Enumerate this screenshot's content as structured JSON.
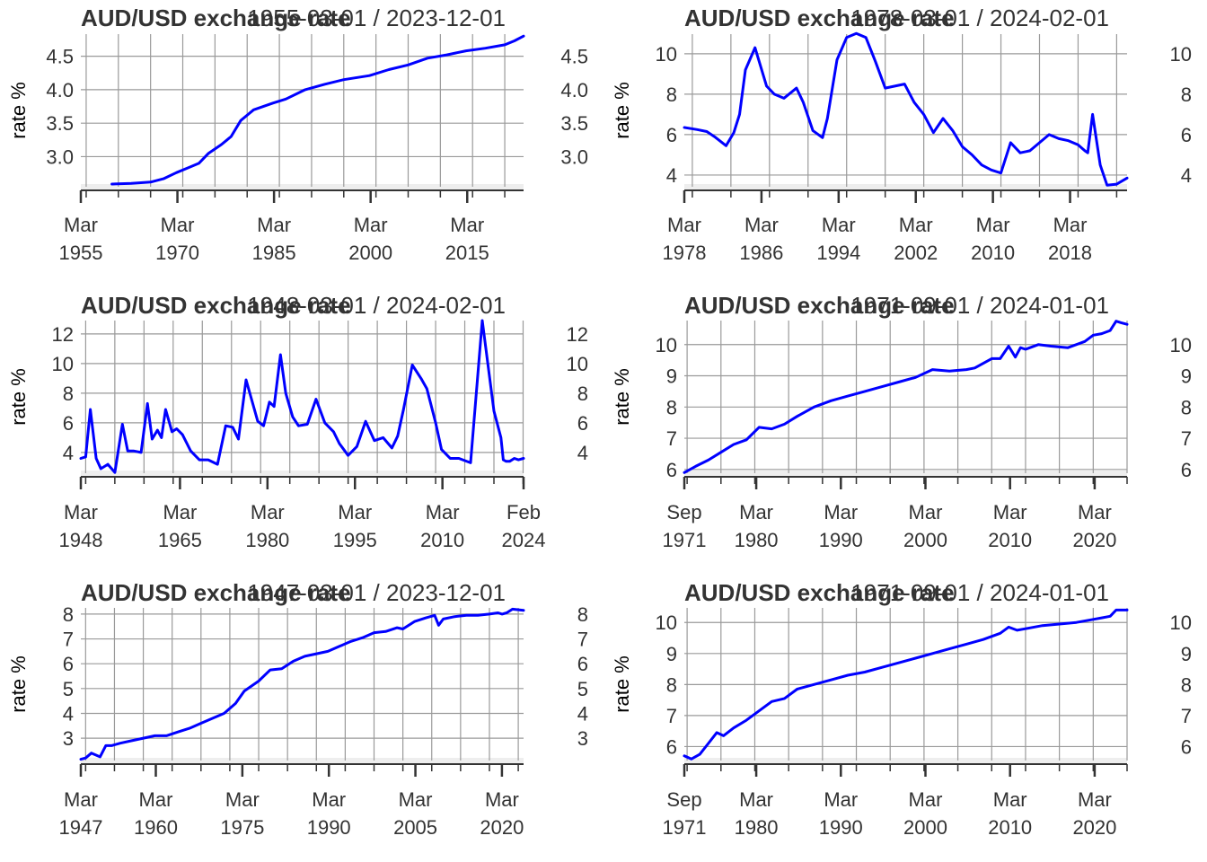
{
  "colors": {
    "line": "#0000ff",
    "grid": "#9a9a9a",
    "axis": "#333333",
    "shade": "#eeeeee"
  },
  "chart_data": [
    {
      "type": "line",
      "title": "AUD/USD exchange rate",
      "date_range": "1955-03-01 / 2023-12-01",
      "ylabel": "rate %",
      "y_ticks": [
        "3.0",
        "3.5",
        "4.0",
        "4.5"
      ],
      "ylim": [
        2.55,
        4.83
      ],
      "x_ticks": [
        {
          "t": 1955.17,
          "label": [
            "Mar",
            "1955"
          ]
        },
        {
          "t": 1970.17,
          "label": [
            "Mar",
            "1970"
          ]
        },
        {
          "t": 1985.17,
          "label": [
            "Mar",
            "1985"
          ]
        },
        {
          "t": 2000.17,
          "label": [
            "Mar",
            "2000"
          ]
        },
        {
          "t": 2015.17,
          "label": [
            "Mar",
            "2015"
          ]
        }
      ],
      "xlim": [
        1955.17,
        2023.92
      ],
      "grid": true,
      "series": [
        {
          "x": [
            1960.0,
            1963.0,
            1966.0,
            1968.0,
            1970.0,
            1972.0,
            1973.5,
            1975.0,
            1977.0,
            1978.5,
            1980.0,
            1982.0,
            1985.0,
            1987.0,
            1990.0,
            1993.0,
            1996.0,
            2000.0,
            2003.0,
            2006.0,
            2009.0,
            2012.0,
            2015.0,
            2018.0,
            2021.0,
            2022.5,
            2023.92
          ],
          "y": [
            2.59,
            2.6,
            2.62,
            2.67,
            2.76,
            2.84,
            2.9,
            3.05,
            3.18,
            3.3,
            3.54,
            3.7,
            3.8,
            3.86,
            4.0,
            4.08,
            4.15,
            4.21,
            4.3,
            4.37,
            4.47,
            4.52,
            4.58,
            4.62,
            4.67,
            4.73,
            4.8
          ]
        }
      ]
    },
    {
      "type": "line",
      "title": "AUD/USD exchange rate",
      "date_range": "1978-03-01 / 2024-02-01",
      "ylabel": "rate %",
      "y_ticks": [
        "4",
        "6",
        "8",
        "10"
      ],
      "ylim": [
        3.42,
        10.97
      ],
      "x_ticks": [
        {
          "t": 1978.17,
          "label": [
            "Mar",
            "1978"
          ]
        },
        {
          "t": 1986.17,
          "label": [
            "Mar",
            "1986"
          ]
        },
        {
          "t": 1994.17,
          "label": [
            "Mar",
            "1994"
          ]
        },
        {
          "t": 2002.17,
          "label": [
            "Mar",
            "2002"
          ]
        },
        {
          "t": 2010.17,
          "label": [
            "Mar",
            "2010"
          ]
        },
        {
          "t": 2018.17,
          "label": [
            "Mar",
            "2018"
          ]
        }
      ],
      "xlim": [
        1978.17,
        2024.08
      ],
      "grid": true,
      "series": [
        {
          "x": [
            1978.17,
            1979.5,
            1980.5,
            1981.3,
            1982.5,
            1983.3,
            1983.9,
            1984.5,
            1985.5,
            1986.7,
            1987.5,
            1988.5,
            1989.8,
            1990.5,
            1991.5,
            1992.5,
            1993.0,
            1994.0,
            1995.0,
            1996.0,
            1997.0,
            1998.0,
            1999.0,
            2000.0,
            2001.0,
            2002.0,
            2003.0,
            2004.0,
            2005.0,
            2006.0,
            2007.0,
            2008.0,
            2009.0,
            2010.0,
            2011.0,
            2012.0,
            2013.0,
            2014.0,
            2015.0,
            2016.0,
            2017.0,
            2018.0,
            2019.0,
            2019.7,
            2020.0,
            2020.5,
            2021.3,
            2022.0,
            2023.0,
            2024.08
          ],
          "y": [
            6.35,
            6.25,
            6.15,
            5.9,
            5.45,
            6.1,
            7.0,
            9.2,
            10.3,
            8.4,
            8.0,
            7.8,
            8.3,
            7.6,
            6.2,
            5.85,
            6.8,
            9.7,
            10.8,
            11.0,
            10.8,
            9.6,
            8.3,
            8.4,
            8.5,
            7.6,
            7.0,
            6.1,
            6.8,
            6.2,
            5.4,
            5.0,
            4.5,
            4.25,
            4.1,
            5.6,
            5.1,
            5.2,
            5.6,
            6.0,
            5.8,
            5.7,
            5.5,
            5.2,
            5.1,
            7.0,
            4.5,
            3.5,
            3.55,
            3.85
          ]
        }
      ]
    },
    {
      "type": "line",
      "title": "AUD/USD exchange rate",
      "date_range": "1948-03-01 / 2024-02-01",
      "ylabel": "rate %",
      "y_ticks": [
        "4",
        "6",
        "8",
        "10",
        "12"
      ],
      "ylim": [
        2.6,
        12.9
      ],
      "x_ticks": [
        {
          "t": 1948.17,
          "label": [
            "Mar",
            "1948"
          ]
        },
        {
          "t": 1965.17,
          "label": [
            "Mar",
            "1965"
          ]
        },
        {
          "t": 1980.17,
          "label": [
            "Mar",
            "1980"
          ]
        },
        {
          "t": 1995.17,
          "label": [
            "Mar",
            "1995"
          ]
        },
        {
          "t": 2010.17,
          "label": [
            "Mar",
            "2010"
          ]
        },
        {
          "t": 2024.08,
          "label": [
            "Feb",
            "2024"
          ]
        }
      ],
      "xlim": [
        1948.17,
        2024.08
      ],
      "grid": true,
      "series": [
        {
          "x": [
            1948.17,
            1949.0,
            1949.8,
            1950.8,
            1951.6,
            1952.8,
            1954.0,
            1955.3,
            1956.2,
            1957.2,
            1958.5,
            1959.6,
            1960.4,
            1961.3,
            1962.0,
            1962.7,
            1963.8,
            1964.6,
            1965.6,
            1967.0,
            1968.5,
            1970.0,
            1971.6,
            1973.0,
            1974.2,
            1975.2,
            1976.5,
            1977.5,
            1978.5,
            1979.5,
            1980.5,
            1981.3,
            1982.4,
            1983.3,
            1984.5,
            1985.5,
            1987.0,
            1988.5,
            1990.0,
            1991.5,
            1992.5,
            1994.0,
            1995.5,
            1997.0,
            1998.5,
            2000.0,
            2001.5,
            2002.5,
            2003.5,
            2005.0,
            2006.5,
            2007.5,
            2009.0,
            2010.0,
            2011.5,
            2013.0,
            2015.0,
            2017.0,
            2019.0,
            2020.2,
            2020.6,
            2021.1,
            2021.7,
            2022.5,
            2023.2,
            2024.08
          ],
          "y": [
            3.6,
            3.7,
            6.9,
            3.6,
            2.9,
            3.2,
            2.65,
            5.9,
            4.1,
            4.1,
            4.0,
            7.3,
            4.9,
            5.5,
            5.0,
            6.9,
            5.4,
            5.6,
            5.2,
            4.1,
            3.5,
            3.5,
            3.2,
            5.8,
            5.7,
            4.9,
            8.9,
            7.5,
            6.1,
            5.8,
            7.4,
            7.1,
            10.6,
            8.0,
            6.4,
            5.8,
            5.9,
            7.6,
            6.0,
            5.4,
            4.6,
            3.8,
            4.4,
            6.1,
            4.8,
            5.0,
            4.3,
            5.1,
            6.9,
            9.9,
            9.0,
            8.3,
            6.0,
            4.2,
            3.6,
            3.6,
            3.3,
            12.9,
            6.8,
            5.0,
            3.5,
            3.4,
            3.4,
            3.6,
            3.5,
            3.6
          ]
        }
      ]
    },
    {
      "type": "line",
      "title": "AUD/USD exchange rate",
      "date_range": "1971-09-01 / 2024-01-01",
      "ylabel": "rate %",
      "y_ticks": [
        "6",
        "7",
        "8",
        "9",
        "10"
      ],
      "ylim": [
        5.88,
        10.77
      ],
      "x_ticks": [
        {
          "t": 1971.67,
          "label": [
            "Sep",
            "1971"
          ]
        },
        {
          "t": 1980.17,
          "label": [
            "Mar",
            "1980"
          ]
        },
        {
          "t": 1990.17,
          "label": [
            "Mar",
            "1990"
          ]
        },
        {
          "t": 2000.17,
          "label": [
            "Mar",
            "2000"
          ]
        },
        {
          "t": 2010.17,
          "label": [
            "Mar",
            "2010"
          ]
        },
        {
          "t": 2020.17,
          "label": [
            "Mar",
            "2020"
          ]
        }
      ],
      "xlim": [
        1971.67,
        2024.0
      ],
      "grid": true,
      "series": [
        {
          "x": [
            1971.67,
            1973.0,
            1974.5,
            1976.0,
            1977.5,
            1979.0,
            1980.5,
            1982.0,
            1983.5,
            1985.0,
            1987.0,
            1989.0,
            1991.0,
            1993.0,
            1995.0,
            1997.0,
            1999.0,
            2001.0,
            2003.0,
            2005.0,
            2006.0,
            2008.0,
            2009.0,
            2010.0,
            2010.8,
            2011.4,
            2012.0,
            2013.5,
            2015.0,
            2017.0,
            2019.0,
            2020.0,
            2021.0,
            2022.0,
            2022.7,
            2023.3,
            2024.0
          ],
          "y": [
            5.9,
            6.1,
            6.3,
            6.55,
            6.8,
            6.95,
            7.35,
            7.3,
            7.45,
            7.7,
            8.0,
            8.2,
            8.35,
            8.5,
            8.65,
            8.8,
            8.95,
            9.2,
            9.15,
            9.2,
            9.25,
            9.55,
            9.55,
            9.95,
            9.6,
            9.9,
            9.85,
            10.0,
            9.95,
            9.9,
            10.1,
            10.3,
            10.35,
            10.45,
            10.75,
            10.7,
            10.65
          ]
        }
      ]
    },
    {
      "type": "line",
      "title": "AUD/USD exchange rate",
      "date_range": "1947-03-01 / 2023-12-01",
      "ylabel": "rate %",
      "y_ticks": [
        "3",
        "4",
        "5",
        "6",
        "7",
        "8"
      ],
      "ylim": [
        2.1,
        8.25
      ],
      "x_ticks": [
        {
          "t": 1947.17,
          "label": [
            "Mar",
            "1947"
          ]
        },
        {
          "t": 1960.17,
          "label": [
            "Mar",
            "1960"
          ]
        },
        {
          "t": 1975.17,
          "label": [
            "Mar",
            "1975"
          ]
        },
        {
          "t": 1990.17,
          "label": [
            "Mar",
            "1990"
          ]
        },
        {
          "t": 2005.17,
          "label": [
            "Mar",
            "2005"
          ]
        },
        {
          "t": 2020.17,
          "label": [
            "Mar",
            "2020"
          ]
        }
      ],
      "xlim": [
        1947.17,
        2023.92
      ],
      "grid": true,
      "series": [
        {
          "x": [
            1947.17,
            1948.0,
            1949.0,
            1950.5,
            1951.5,
            1952.5,
            1954.0,
            1956.0,
            1958.0,
            1960.0,
            1962.0,
            1964.0,
            1966.0,
            1968.0,
            1970.0,
            1972.0,
            1974.0,
            1975.5,
            1978.0,
            1980.0,
            1982.0,
            1984.0,
            1986.0,
            1988.0,
            1990.0,
            1992.0,
            1994.0,
            1996.0,
            1998.0,
            2000.0,
            2002.0,
            2003.0,
            2005.0,
            2007.0,
            2008.5,
            2009.2,
            2010.0,
            2012.0,
            2014.0,
            2016.0,
            2018.0,
            2019.5,
            2020.2,
            2021.0,
            2022.0,
            2023.92
          ],
          "y": [
            2.15,
            2.2,
            2.4,
            2.25,
            2.7,
            2.7,
            2.8,
            2.9,
            3.0,
            3.1,
            3.1,
            3.25,
            3.4,
            3.6,
            3.8,
            4.0,
            4.4,
            4.9,
            5.3,
            5.75,
            5.8,
            6.1,
            6.3,
            6.4,
            6.5,
            6.7,
            6.9,
            7.05,
            7.25,
            7.3,
            7.45,
            7.4,
            7.7,
            7.85,
            7.95,
            7.55,
            7.8,
            7.9,
            7.95,
            7.95,
            8.0,
            8.05,
            8.0,
            8.05,
            8.2,
            8.15
          ]
        }
      ]
    },
    {
      "type": "line",
      "title": "AUD/USD exchange rate",
      "date_range": "1971-09-01 / 2024-01-01",
      "ylabel": "rate %",
      "y_ticks": [
        "6",
        "7",
        "8",
        "9",
        "10"
      ],
      "ylim": [
        5.55,
        10.47
      ],
      "x_ticks": [
        {
          "t": 1971.67,
          "label": [
            "Sep",
            "1971"
          ]
        },
        {
          "t": 1980.17,
          "label": [
            "Mar",
            "1980"
          ]
        },
        {
          "t": 1990.17,
          "label": [
            "Mar",
            "1990"
          ]
        },
        {
          "t": 2000.17,
          "label": [
            "Mar",
            "2000"
          ]
        },
        {
          "t": 2010.17,
          "label": [
            "Mar",
            "2010"
          ]
        },
        {
          "t": 2020.17,
          "label": [
            "Mar",
            "2020"
          ]
        }
      ],
      "xlim": [
        1971.67,
        2024.0
      ],
      "grid": true,
      "series": [
        {
          "x": [
            1971.67,
            1972.5,
            1973.5,
            1974.5,
            1975.5,
            1976.3,
            1977.5,
            1979.0,
            1980.5,
            1982.0,
            1983.5,
            1985.0,
            1987.0,
            1989.0,
            1991.0,
            1993.0,
            1995.0,
            1997.0,
            1999.0,
            2001.0,
            2003.0,
            2005.0,
            2007.0,
            2009.0,
            2010.0,
            2011.0,
            2012.0,
            2014.0,
            2016.0,
            2018.0,
            2020.0,
            2021.0,
            2022.0,
            2022.7,
            2023.3,
            2024.0
          ],
          "y": [
            5.7,
            5.6,
            5.75,
            6.1,
            6.45,
            6.35,
            6.6,
            6.85,
            7.15,
            7.45,
            7.55,
            7.85,
            8.0,
            8.15,
            8.3,
            8.4,
            8.55,
            8.7,
            8.85,
            9.0,
            9.15,
            9.3,
            9.45,
            9.65,
            9.85,
            9.75,
            9.8,
            9.9,
            9.95,
            10.0,
            10.1,
            10.15,
            10.2,
            10.4,
            10.4,
            10.4
          ]
        }
      ]
    }
  ]
}
